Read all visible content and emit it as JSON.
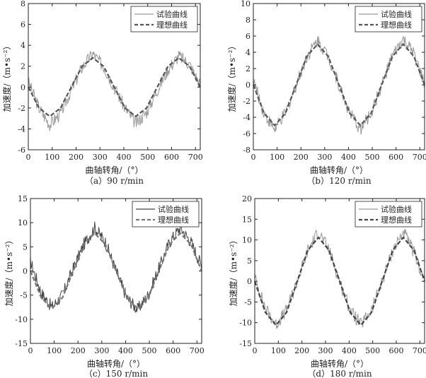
{
  "chart_data": [
    {
      "type": "line",
      "caption": "（a）90 r/min",
      "xlabel": "曲轴转角/（°）",
      "ylabel": "加速度/（m•s⁻²）",
      "xlim": [
        0,
        720
      ],
      "ylim": [
        -6,
        8
      ],
      "xticks": [
        "0",
        "100",
        "200",
        "300",
        "400",
        "500",
        "600",
        "700"
      ],
      "yticks": [
        "-6",
        "-4",
        "-2",
        "0",
        "2",
        "4",
        "6",
        "8"
      ],
      "legend": "top-right",
      "series": [
        {
          "name": "试验曲线",
          "color": "#999999",
          "style": "solid",
          "x": [
            0,
            45,
            90,
            135,
            180,
            225,
            270,
            315,
            360,
            405,
            450,
            495,
            540,
            585,
            630,
            675,
            720
          ],
          "y": [
            0.5,
            -2.0,
            -3.6,
            -2.5,
            -0.3,
            1.9,
            3.2,
            2.0,
            0.0,
            -2.0,
            -3.5,
            -2.4,
            -0.3,
            1.7,
            3.0,
            2.2,
            0.2
          ]
        },
        {
          "name": "理想曲线",
          "color": "#555555",
          "style": "dashed",
          "x": [
            0,
            45,
            90,
            135,
            180,
            225,
            270,
            315,
            360,
            405,
            450,
            495,
            540,
            585,
            630,
            675,
            720
          ],
          "y": [
            0.0,
            -2.0,
            -2.8,
            -2.0,
            0.0,
            2.0,
            2.8,
            2.0,
            0.0,
            -2.0,
            -2.8,
            -2.0,
            0.0,
            2.0,
            2.8,
            2.0,
            0.0
          ]
        }
      ]
    },
    {
      "type": "line",
      "caption": "（b）120 r/min",
      "xlabel": "曲轴转角/（°）",
      "ylabel": "加速度/（m•s⁻²）",
      "xlim": [
        0,
        720
      ],
      "ylim": [
        -8,
        10
      ],
      "xticks": [
        "0",
        "100",
        "200",
        "300",
        "400",
        "500",
        "600",
        "700"
      ],
      "yticks": [
        "-8",
        "-6",
        "-4",
        "-2",
        "0",
        "2",
        "4",
        "6",
        "8",
        "10"
      ],
      "legend": "top-right",
      "series": [
        {
          "name": "试验曲线",
          "color": "#999999",
          "style": "solid",
          "x": [
            0,
            45,
            90,
            135,
            180,
            225,
            270,
            315,
            360,
            405,
            450,
            495,
            540,
            585,
            630,
            675,
            720
          ],
          "y": [
            0.5,
            -3.5,
            -5.5,
            -3.5,
            0.0,
            3.5,
            5.5,
            3.5,
            0.0,
            -3.5,
            -5.5,
            -3.5,
            0.0,
            3.5,
            5.5,
            3.8,
            0.0
          ]
        },
        {
          "name": "理想曲线",
          "color": "#555555",
          "style": "dashed",
          "x": [
            0,
            45,
            90,
            135,
            180,
            225,
            270,
            315,
            360,
            405,
            450,
            495,
            540,
            585,
            630,
            675,
            720
          ],
          "y": [
            0.0,
            -3.5,
            -5.0,
            -3.5,
            0.0,
            3.5,
            5.0,
            3.5,
            0.0,
            -3.5,
            -5.0,
            -3.5,
            0.0,
            3.5,
            5.0,
            3.5,
            0.0
          ]
        }
      ]
    },
    {
      "type": "line",
      "caption": "（c）150 r/min",
      "xlabel": "曲轴转角/（°）",
      "ylabel": "加速度/（m•s⁻²）",
      "xlim": [
        0,
        720
      ],
      "ylim": [
        -15,
        15
      ],
      "xticks": [
        "0",
        "100",
        "200",
        "300",
        "400",
        "500",
        "600",
        "700"
      ],
      "yticks": [
        "-15",
        "-10",
        "-5",
        "0",
        "5",
        "10",
        "15"
      ],
      "legend": "top-right",
      "series": [
        {
          "name": "试验曲线",
          "color": "#444444",
          "style": "solid",
          "x": [
            0,
            45,
            90,
            135,
            180,
            225,
            270,
            315,
            360,
            405,
            450,
            495,
            540,
            585,
            630,
            675,
            720
          ],
          "y": [
            2.0,
            -4.5,
            -7.5,
            -5.0,
            0.5,
            5.5,
            9.0,
            6.0,
            0.0,
            -5.5,
            -8.0,
            -5.0,
            0.5,
            6.0,
            9.0,
            6.0,
            1.0
          ]
        },
        {
          "name": "理想曲线",
          "color": "#777777",
          "style": "dashed",
          "x": [
            0,
            45,
            90,
            135,
            180,
            225,
            270,
            315,
            360,
            405,
            450,
            495,
            540,
            585,
            630,
            675,
            720
          ],
          "y": [
            0.0,
            -5.5,
            -7.8,
            -5.5,
            0.0,
            5.5,
            7.8,
            5.5,
            0.0,
            -5.5,
            -7.8,
            -5.5,
            0.0,
            5.5,
            7.8,
            5.5,
            0.0
          ]
        }
      ]
    },
    {
      "type": "line",
      "caption": "（d）180 r/min",
      "xlabel": "曲轴转角/（°）",
      "ylabel": "加速度/（m•s⁻²）",
      "xlim": [
        0,
        720
      ],
      "ylim": [
        -15,
        20
      ],
      "xticks": [
        "0",
        "100",
        "200",
        "300",
        "400",
        "500",
        "600",
        "700"
      ],
      "yticks": [
        "-15",
        "-10",
        "-5",
        "0",
        "5",
        "10",
        "15",
        "20"
      ],
      "legend": "top-right",
      "series": [
        {
          "name": "试验曲线",
          "color": "#999999",
          "style": "solid",
          "x": [
            0,
            45,
            90,
            135,
            180,
            225,
            270,
            315,
            360,
            405,
            450,
            495,
            540,
            585,
            630,
            675,
            720
          ],
          "y": [
            1.0,
            -6.5,
            -10.5,
            -7.0,
            0.0,
            7.5,
            12.0,
            7.5,
            0.0,
            -7.0,
            -10.5,
            -7.0,
            0.0,
            7.5,
            12.0,
            7.0,
            0.0
          ]
        },
        {
          "name": "理想曲线",
          "color": "#444444",
          "style": "dashed",
          "x": [
            0,
            45,
            90,
            135,
            180,
            225,
            270,
            315,
            360,
            405,
            450,
            495,
            540,
            585,
            630,
            675,
            720
          ],
          "y": [
            0.0,
            -7.5,
            -10.6,
            -7.5,
            0.0,
            7.5,
            10.6,
            7.5,
            0.0,
            -7.5,
            -10.6,
            -7.5,
            0.0,
            7.5,
            10.6,
            7.5,
            0.0
          ]
        }
      ]
    }
  ]
}
